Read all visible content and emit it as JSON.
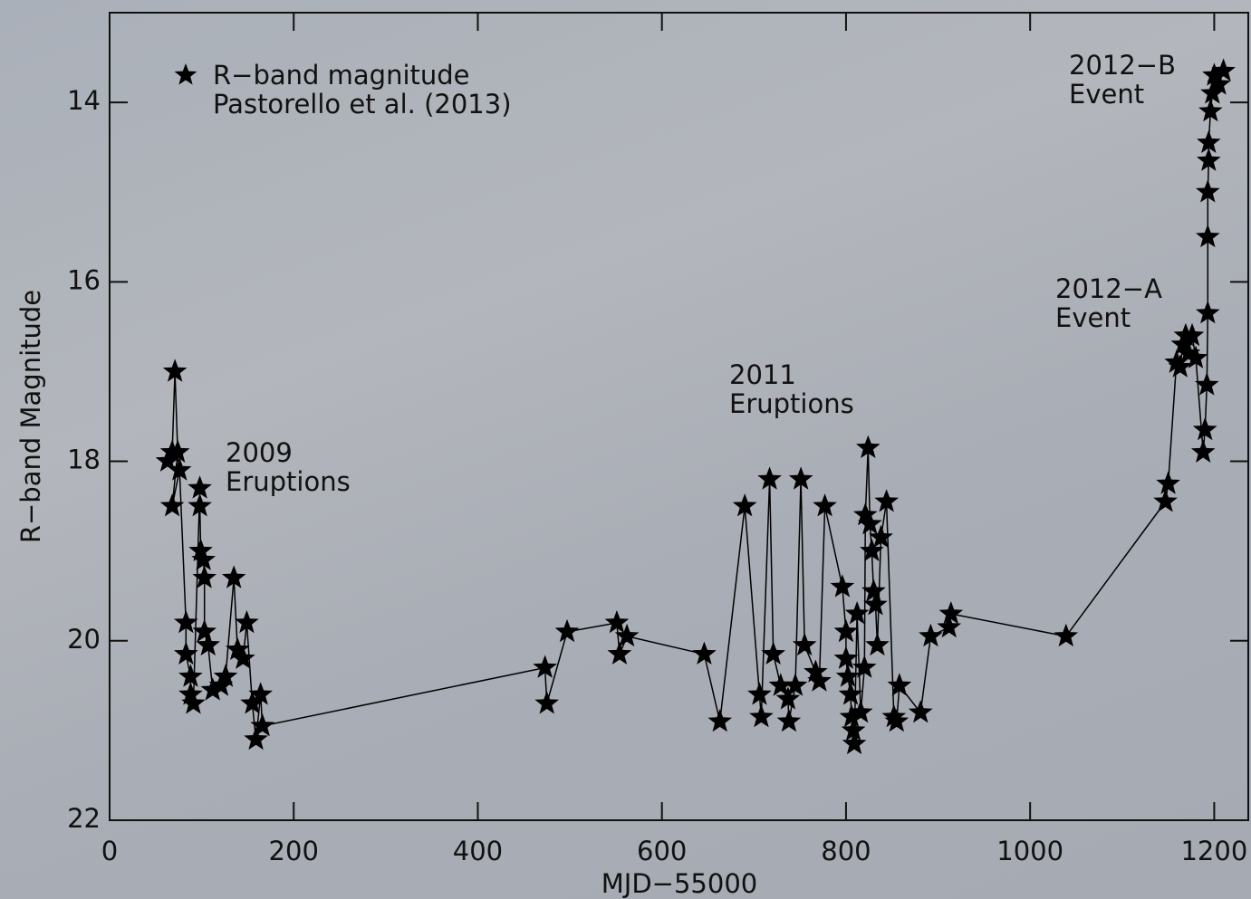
{
  "chart_data": {
    "type": "line",
    "xlabel": "MJD−55000",
    "ylabel": "R−band Magnitude",
    "xlim": [
      0,
      1237
    ],
    "ylim": [
      22,
      13
    ],
    "xticks": [
      0,
      200,
      400,
      600,
      800,
      1000,
      1200
    ],
    "yticks": [
      14,
      16,
      18,
      20,
      22
    ],
    "marker": "star",
    "legend": "upper left",
    "legend_note": "Pastorello et al. (2013)",
    "annotations": [
      [
        "2009",
        "Eruptions"
      ],
      [
        "2011",
        "Eruptions"
      ],
      [
        "2012−A",
        "Event"
      ],
      [
        "2012−B",
        "Event"
      ]
    ],
    "x": [
      63,
      68,
      71,
      74,
      68,
      76,
      83,
      83,
      88,
      88,
      91,
      98,
      98,
      99,
      102,
      103,
      103,
      107,
      112,
      121,
      126,
      135,
      139,
      145,
      149,
      155,
      159,
      164,
      166,
      473,
      475,
      497,
      551,
      554,
      562,
      646,
      663,
      690,
      706,
      708,
      717,
      721,
      729,
      737,
      738,
      745,
      751,
      755,
      767,
      771,
      777,
      796,
      800,
      800,
      802,
      805,
      806,
      808,
      809,
      812,
      816,
      820,
      821,
      824,
      826,
      828,
      830,
      832,
      834,
      838,
      844,
      852,
      855,
      858,
      881,
      892,
      912,
      914,
      1039,
      1147,
      1150,
      1159,
      1163,
      1166,
      1169,
      1172,
      1176,
      1180,
      1188,
      1190,
      1192,
      1193,
      1193,
      1193,
      1194,
      1194,
      1196,
      1198,
      1200,
      1205,
      1210
    ],
    "series": [
      {
        "name": "R−band magnitude",
        "color": "#000000",
        "values": [
          18.0,
          17.9,
          17.0,
          17.9,
          18.5,
          18.1,
          19.8,
          20.15,
          20.4,
          20.6,
          20.7,
          18.3,
          18.5,
          19.0,
          19.1,
          19.3,
          19.9,
          20.05,
          20.55,
          20.5,
          20.4,
          19.3,
          20.1,
          20.2,
          19.8,
          20.7,
          21.1,
          20.6,
          20.95,
          20.3,
          20.7,
          19.9,
          19.8,
          20.15,
          19.95,
          20.15,
          20.9,
          18.5,
          20.6,
          20.85,
          18.2,
          20.15,
          20.5,
          20.65,
          20.9,
          20.5,
          18.2,
          20.05,
          20.35,
          20.45,
          18.5,
          19.4,
          19.9,
          20.2,
          20.4,
          20.6,
          20.85,
          21.0,
          21.15,
          19.7,
          20.8,
          20.3,
          18.6,
          17.85,
          18.7,
          19.0,
          19.45,
          19.6,
          20.05,
          18.85,
          18.45,
          20.85,
          20.9,
          20.5,
          20.8,
          19.95,
          19.85,
          19.7,
          19.95,
          18.45,
          18.25,
          16.9,
          16.95,
          16.7,
          16.6,
          16.8,
          16.6,
          16.85,
          17.9,
          17.65,
          17.15,
          16.35,
          15.5,
          15.0,
          14.65,
          14.45,
          14.1,
          13.9,
          13.7,
          13.8,
          13.65
        ]
      }
    ]
  }
}
